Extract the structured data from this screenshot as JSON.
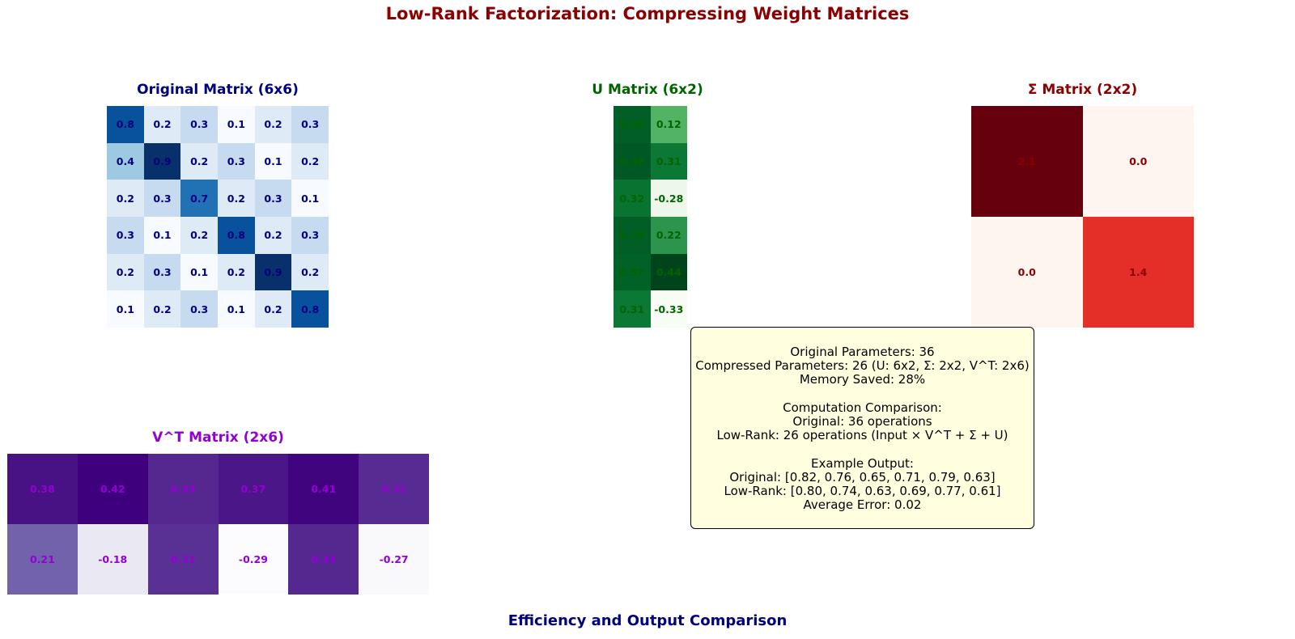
{
  "title": "Low-Rank Factorization: Compressing Weight Matrices",
  "bottom_title": "Efficiency and Output Comparison",
  "chart_data": [
    {
      "type": "heatmap",
      "title": "Original Matrix (6x6)",
      "colormap": "Blues",
      "title_color": "#000080",
      "text_color": "#000080",
      "vmin": 0.1,
      "vmax": 0.9,
      "rows": [
        [
          0.8,
          0.2,
          0.3,
          0.1,
          0.2,
          0.3
        ],
        [
          0.4,
          0.9,
          0.2,
          0.3,
          0.1,
          0.2
        ],
        [
          0.2,
          0.3,
          0.7,
          0.2,
          0.3,
          0.1
        ],
        [
          0.3,
          0.1,
          0.2,
          0.8,
          0.2,
          0.3
        ],
        [
          0.2,
          0.3,
          0.1,
          0.2,
          0.9,
          0.2
        ],
        [
          0.1,
          0.2,
          0.3,
          0.1,
          0.2,
          0.8
        ]
      ],
      "labels": [
        [
          "0.8",
          "0.2",
          "0.3",
          "0.1",
          "0.2",
          "0.3"
        ],
        [
          "0.4",
          "0.9",
          "0.2",
          "0.3",
          "0.1",
          "0.2"
        ],
        [
          "0.2",
          "0.3",
          "0.7",
          "0.2",
          "0.3",
          "0.1"
        ],
        [
          "0.3",
          "0.1",
          "0.2",
          "0.8",
          "0.2",
          "0.3"
        ],
        [
          "0.2",
          "0.3",
          "0.1",
          "0.2",
          "0.9",
          "0.2"
        ],
        [
          "0.1",
          "0.2",
          "0.3",
          "0.1",
          "0.2",
          "0.8"
        ]
      ]
    },
    {
      "type": "heatmap",
      "title": "U Matrix (6x2)",
      "colormap": "Greens",
      "title_color": "#006400",
      "text_color": "#006400",
      "vmin": -0.33,
      "vmax": 0.44,
      "rows": [
        [
          0.38,
          0.12
        ],
        [
          0.39,
          0.31
        ],
        [
          0.32,
          -0.28
        ],
        [
          0.38,
          0.22
        ],
        [
          0.37,
          0.44
        ],
        [
          0.31,
          -0.33
        ]
      ],
      "labels": [
        [
          "0.38",
          "0.12"
        ],
        [
          "0.39",
          "0.31"
        ],
        [
          "0.32",
          "-0.28"
        ],
        [
          "0.38",
          "0.22"
        ],
        [
          "0.37",
          "0.44"
        ],
        [
          "0.31",
          "-0.33"
        ]
      ]
    },
    {
      "type": "heatmap",
      "title": "Σ Matrix (2x2)",
      "colormap": "Reds",
      "title_color": "#8b0000",
      "text_color": "#8b0000",
      "vmin": 0.0,
      "vmax": 2.1,
      "rows": [
        [
          2.1,
          0.0
        ],
        [
          0.0,
          1.4
        ]
      ],
      "labels": [
        [
          "2.1",
          "0.0"
        ],
        [
          "0.0",
          "1.4"
        ]
      ]
    },
    {
      "type": "heatmap",
      "title": "V^T Matrix (2x6)",
      "colormap": "Purples",
      "title_color": "#9400d3",
      "text_color": "#9400d3",
      "vmin": -0.29,
      "vmax": 0.42,
      "rows": [
        [
          0.38,
          0.42,
          0.33,
          0.37,
          0.41,
          0.32
        ],
        [
          0.21,
          -0.18,
          0.31,
          -0.29,
          0.33,
          -0.27
        ]
      ],
      "labels": [
        [
          "0.38",
          "0.42",
          "0.33",
          "0.37",
          "0.41",
          "0.32"
        ],
        [
          "0.21",
          "-0.18",
          "0.31",
          "-0.29",
          "0.33",
          "-0.27"
        ]
      ]
    }
  ],
  "info_box": {
    "lines": [
      "Original Parameters: 36",
      "Compressed Parameters: 26 (U: 6x2, Σ: 2x2, V^T: 2x6)",
      "Memory Saved: 28%",
      "",
      "Computation Comparison:",
      "Original: 36 operations",
      "Low-Rank: 26 operations (Input × V^T + Σ + U)",
      "",
      "Example Output:",
      "Original: [0.82, 0.76, 0.65, 0.71, 0.79, 0.63]",
      "Low-Rank: [0.80, 0.74, 0.63, 0.69, 0.77, 0.61]",
      "Average Error: 0.02"
    ]
  }
}
